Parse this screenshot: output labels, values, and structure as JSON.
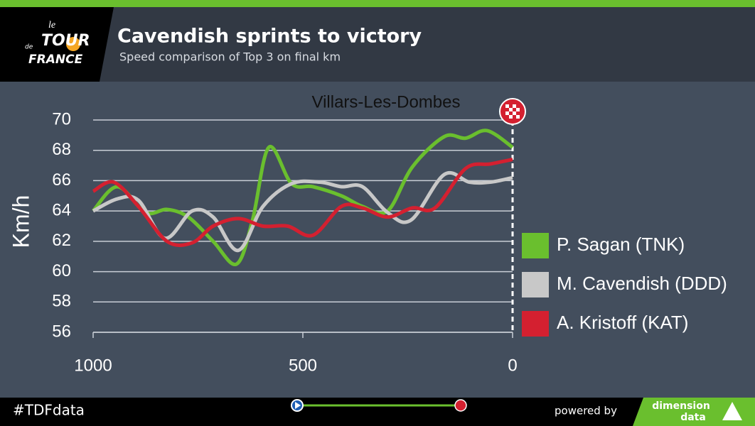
{
  "header": {
    "logo": [
      "le",
      "TOUR",
      "de",
      "FRANCE"
    ],
    "title": "Cavendish sprints to victory",
    "subtitle": "Speed comparison of Top 3 on final km"
  },
  "chart_data": {
    "type": "line",
    "annotation": "Villars-Les-Dombes",
    "ylabel": "Km/h",
    "xlim": [
      1000,
      0
    ],
    "xticks": [
      1000,
      500,
      0
    ],
    "ylim": [
      56,
      70
    ],
    "yticks": [
      56,
      58,
      60,
      62,
      64,
      66,
      68,
      70
    ],
    "grid": true,
    "legend": "right",
    "series": [
      {
        "name": "P. Sagan (TNK)",
        "color": "#6abf2e",
        "x": [
          1000,
          942,
          875,
          824,
          773,
          714,
          658,
          620,
          581,
          527,
          476,
          408,
          358,
          298,
          239,
          163,
          112,
          61,
          0
        ],
        "values": [
          64.0,
          65.6,
          63.9,
          64.1,
          63.6,
          62.0,
          60.5,
          63.4,
          68.2,
          65.8,
          65.6,
          65.0,
          64.3,
          64.0,
          66.9,
          68.9,
          68.8,
          69.3,
          68.2
        ]
      },
      {
        "name": "M. Cavendish (DDD)",
        "color": "#c8c8c8",
        "x": [
          1000,
          942,
          892,
          829,
          764,
          714,
          654,
          595,
          527,
          459,
          408,
          358,
          298,
          242,
          163,
          103,
          53,
          0
        ],
        "values": [
          64.0,
          64.8,
          64.7,
          62.2,
          64.0,
          63.6,
          61.4,
          64.3,
          65.8,
          65.9,
          65.6,
          65.6,
          63.9,
          63.4,
          66.4,
          65.9,
          65.9,
          66.2
        ]
      },
      {
        "name": "A. Kristoff (KAT)",
        "color": "#d42030",
        "x": [
          1000,
          951,
          892,
          824,
          764,
          714,
          654,
          595,
          536,
          476,
          408,
          358,
          298,
          239,
          185,
          112,
          53,
          0
        ],
        "values": [
          65.3,
          65.9,
          64.3,
          62.0,
          61.9,
          63.0,
          63.5,
          63.0,
          63.0,
          62.4,
          64.3,
          64.2,
          63.6,
          64.2,
          64.2,
          66.8,
          67.1,
          67.4
        ]
      }
    ]
  },
  "footer": {
    "hashtag": "#TDFdata",
    "powered": "powered by",
    "brand": [
      "dimension",
      "data"
    ]
  }
}
